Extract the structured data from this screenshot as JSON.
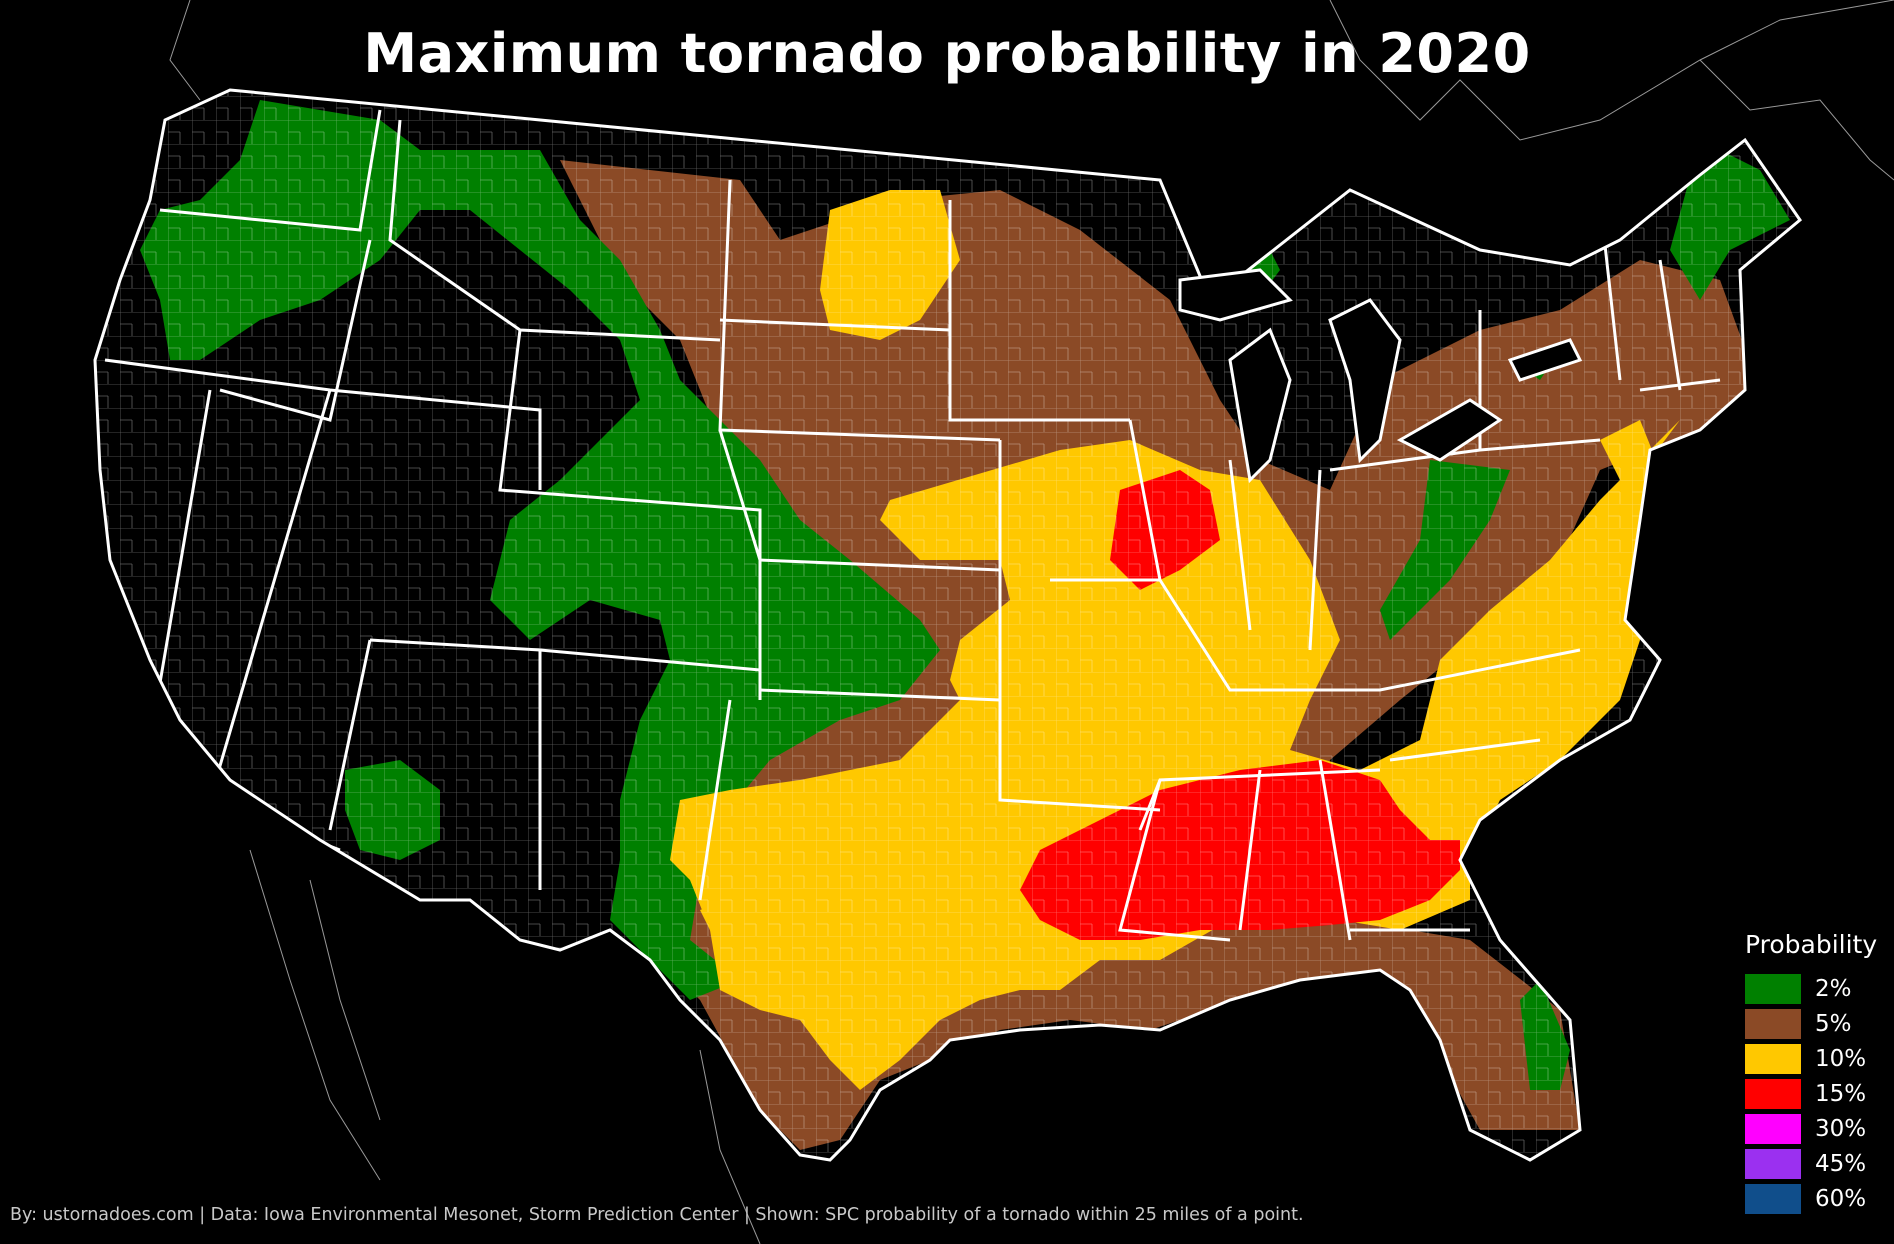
{
  "title": "Maximum tornado probability in 2020",
  "legend": {
    "title": "Probability",
    "items": [
      {
        "label": "2%",
        "color": "#008000"
      },
      {
        "label": "5%",
        "color": "#8B4A26"
      },
      {
        "label": "10%",
        "color": "#FFC800"
      },
      {
        "label": "15%",
        "color": "#FF0000"
      },
      {
        "label": "30%",
        "color": "#FF00FF"
      },
      {
        "label": "45%",
        "color": "#9B30F0"
      },
      {
        "label": "60%",
        "color": "#104E8B"
      }
    ]
  },
  "footer": "By: ustornadoes.com | Data: Iowa Environmental Mesonet, Storm Prediction Center | Shown: SPC probability of a tornado within 25 miles of a point.",
  "colors": {
    "background": "#000000",
    "borders": "#ffffff",
    "unshaded": "#000000"
  }
}
